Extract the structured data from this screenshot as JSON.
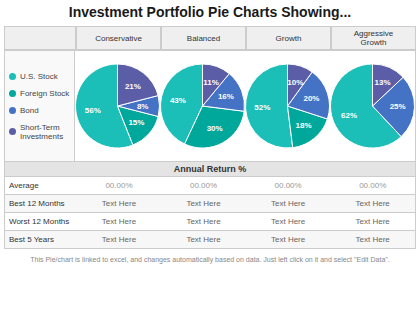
{
  "title": "Investment Portfolio Pie Charts Showing...",
  "chart_data": [
    {
      "type": "pie",
      "title": "Conservative",
      "categories": [
        "U.S. Stock",
        "Foreign Stock",
        "Bond",
        "Short-Term\nInvestments"
      ],
      "values": [
        56,
        15,
        8,
        21
      ],
      "value_labels": [
        "56%",
        "15%",
        "8%",
        "21%"
      ],
      "colors": [
        "#1BBFB8",
        "#00A89C",
        "#4472C4",
        "#5B5EA6"
      ],
      "data_labels": true
    },
    {
      "type": "pie",
      "title": "Balanced",
      "categories": [
        "U.S. Stock",
        "Foreign Stock",
        "Bond",
        "Short-Term\nInvestments"
      ],
      "values": [
        43,
        30,
        16,
        11
      ],
      "value_labels": [
        "43%",
        "30%",
        "16%",
        "11%"
      ],
      "colors": [
        "#1BBFB8",
        "#00A89C",
        "#4472C4",
        "#5B5EA6"
      ],
      "data_labels": true
    },
    {
      "type": "pie",
      "title": "Growth",
      "categories": [
        "U.S. Stock",
        "Foreign Stock",
        "Bond",
        "Short-Term\nInvestments"
      ],
      "values": [
        52,
        18,
        20,
        10
      ],
      "value_labels": [
        "52%",
        "18%",
        "20%",
        "10%"
      ],
      "colors": [
        "#1BBFB8",
        "#00A89C",
        "#4472C4",
        "#5B5EA6"
      ],
      "data_labels": true
    },
    {
      "type": "pie",
      "title": "Aggressive\nGrowth",
      "categories": [
        "U.S. Stock",
        "Bond",
        "Short-Term\nInvestments"
      ],
      "values": [
        62,
        25,
        13
      ],
      "value_labels": [
        "62%",
        "25%",
        "13%"
      ],
      "colors": [
        "#1BBFB8",
        "#4472C4",
        "#5B5EA6"
      ],
      "data_labels": true
    }
  ],
  "table": {
    "title": "Annual Return %",
    "rows": [
      "Average",
      "Best 12 Months",
      "Worst 12 Months",
      "Best 5 Years"
    ],
    "cells": [
      [
        "00.00%",
        "00.00%",
        "00.00%",
        "00.00%"
      ],
      [
        "Text Here",
        "Text Here",
        "Text Here",
        "Text Here"
      ],
      [
        "Text Here",
        "Text Here",
        "Text Here",
        "Text Here"
      ],
      [
        "Text Here",
        "Text Here",
        "Text Here",
        "Text Here"
      ]
    ]
  },
  "footer": "This Pie/chart is linked to excel, and changes automatically based on data. Just left click on it and select \"Edit Data\"."
}
